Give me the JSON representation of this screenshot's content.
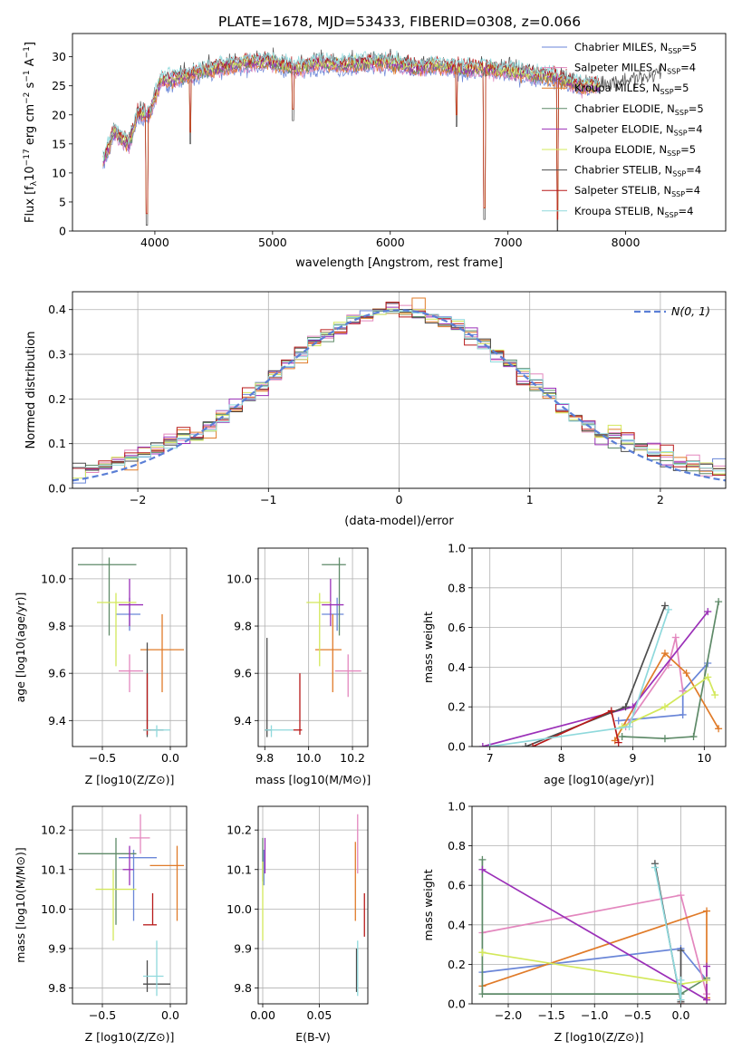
{
  "figure_title": "PLATE=1678, MJD=53433, FIBERID=0308, z=0.066",
  "models": [
    {
      "name": "Chabrier MILES, N",
      "sub": "SSP",
      "tail": "=5",
      "color": "#6a86d8"
    },
    {
      "name": "Salpeter MILES, N",
      "sub": "SSP",
      "tail": "=4",
      "color": "#e387be"
    },
    {
      "name": "Kroupa MILES, N",
      "sub": "SSP",
      "tail": "=5",
      "color": "#e07b29"
    },
    {
      "name": "Chabrier ELODIE, N",
      "sub": "SSP",
      "tail": "=5",
      "color": "#5e8a68"
    },
    {
      "name": "Salpeter ELODIE, N",
      "sub": "SSP",
      "tail": "=4",
      "color": "#9b30b8"
    },
    {
      "name": "Kroupa ELODIE, N",
      "sub": "SSP",
      "tail": "=5",
      "color": "#d3e85b"
    },
    {
      "name": "Chabrier STELIB, N",
      "sub": "SSP",
      "tail": "=4",
      "color": "#4d4d4d"
    },
    {
      "name": "Salpeter STELIB, N",
      "sub": "SSP",
      "tail": "=4",
      "color": "#b81a1a"
    },
    {
      "name": "Kroupa STELIB, N",
      "sub": "SSP",
      "tail": "=4",
      "color": "#8fd9dc"
    }
  ],
  "chart_data": [
    {
      "id": "spectrum",
      "type": "line",
      "xlabel": "wavelength [Angstrom, rest frame]",
      "ylabel_parts": [
        "Flux [f",
        "λ",
        "10",
        "−17",
        " erg cm",
        "−2",
        " s",
        "−1",
        " A",
        "−1",
        "]"
      ],
      "xlim": [
        3300,
        8850
      ],
      "ylim": [
        0,
        34
      ],
      "xticks": [
        4000,
        5000,
        6000,
        7000,
        8000
      ],
      "yticks": [
        0,
        5,
        10,
        15,
        20,
        25,
        30
      ],
      "legend_position": "top-right",
      "anchors": [
        [
          3560,
          12
        ],
        [
          3650,
          17
        ],
        [
          3780,
          15
        ],
        [
          3850,
          20
        ],
        [
          3950,
          20
        ],
        [
          4050,
          26
        ],
        [
          4150,
          26
        ],
        [
          4300,
          27
        ],
        [
          4500,
          28
        ],
        [
          4800,
          29
        ],
        [
          5000,
          29
        ],
        [
          5200,
          28
        ],
        [
          5400,
          29
        ],
        [
          5600,
          28.5
        ],
        [
          5800,
          29
        ],
        [
          6000,
          29
        ],
        [
          6200,
          28
        ],
        [
          6400,
          28.5
        ],
        [
          6600,
          28
        ],
        [
          6800,
          28
        ],
        [
          7000,
          27.5
        ],
        [
          7200,
          27
        ],
        [
          7400,
          26.5
        ],
        [
          7600,
          25
        ],
        [
          7800,
          25
        ],
        [
          8000,
          25.5
        ],
        [
          8200,
          26
        ],
        [
          8300,
          27
        ]
      ],
      "dips": [
        [
          3933,
          1
        ],
        [
          4300,
          15
        ],
        [
          5175,
          19
        ],
        [
          6563,
          18
        ],
        [
          6800,
          2
        ],
        [
          7420,
          0
        ]
      ]
    },
    {
      "id": "residuals",
      "type": "histogram",
      "xlabel": "(data-model)/error",
      "ylabel": "Normed distribution",
      "xlim": [
        -2.5,
        2.5
      ],
      "ylim": [
        0,
        0.44
      ],
      "xticks": [
        -2,
        -1,
        0,
        1,
        2
      ],
      "yticks": [
        0.0,
        0.1,
        0.2,
        0.3,
        0.4
      ],
      "reference_curve": "Normal(0,1)",
      "legend_label": "N(0, 1)",
      "bin_width": 0.1
    },
    {
      "id": "age_vs_Z",
      "type": "scatter",
      "xlabel": "Z [log10(Z/Z⊙)]",
      "ylabel": "age [log10(age/yr)]",
      "xlim": [
        -0.72,
        0.12
      ],
      "ylim": [
        9.29,
        10.13
      ],
      "xticks": [
        -0.5,
        0.0
      ],
      "yticks": [
        9.4,
        9.6,
        9.8,
        10.0
      ],
      "points": [
        {
          "m": 0,
          "x": -0.3,
          "xlo": -0.4,
          "xhi": -0.22,
          "y": 9.85,
          "ylo": 9.78,
          "yhi": 9.92
        },
        {
          "m": 1,
          "x": -0.3,
          "xlo": -0.38,
          "xhi": -0.2,
          "y": 9.61,
          "ylo": 9.52,
          "yhi": 9.68
        },
        {
          "m": 2,
          "x": -0.06,
          "xlo": -0.22,
          "xhi": 0.1,
          "y": 9.7,
          "ylo": 9.52,
          "yhi": 9.85
        },
        {
          "m": 3,
          "x": -0.45,
          "xlo": -0.68,
          "xhi": -0.25,
          "y": 10.06,
          "ylo": 9.76,
          "yhi": 10.09
        },
        {
          "m": 4,
          "x": -0.3,
          "xlo": -0.38,
          "xhi": -0.2,
          "y": 9.89,
          "ylo": 9.8,
          "yhi": 10.0
        },
        {
          "m": 5,
          "x": -0.4,
          "xlo": -0.54,
          "xhi": -0.25,
          "y": 9.9,
          "ylo": 9.63,
          "yhi": 9.94
        },
        {
          "m": 6,
          "x": -0.17,
          "xlo": -0.2,
          "xhi": -0.05,
          "y": 9.36,
          "ylo": 9.33,
          "yhi": 9.73
        },
        {
          "m": 7,
          "x": -0.17,
          "xlo": -0.2,
          "xhi": -0.14,
          "y": 9.36,
          "ylo": 9.34,
          "yhi": 9.6
        },
        {
          "m": 8,
          "x": -0.1,
          "xlo": -0.2,
          "xhi": 0.0,
          "y": 9.36,
          "ylo": 9.33,
          "yhi": 9.38
        }
      ]
    },
    {
      "id": "age_vs_mass",
      "type": "scatter",
      "xlabel": "mass [log10(M/M⊙)]",
      "ylabel": "",
      "xlim": [
        9.77,
        10.27
      ],
      "ylim": [
        9.29,
        10.13
      ],
      "xticks": [
        9.8,
        10.0,
        10.2
      ],
      "yticks": [
        9.4,
        9.6,
        9.8,
        10.0
      ],
      "points": [
        {
          "m": 0,
          "x": 10.13,
          "xlo": 10.06,
          "xhi": 10.16,
          "y": 9.85,
          "ylo": 9.78,
          "yhi": 9.92
        },
        {
          "m": 1,
          "x": 10.18,
          "xlo": 10.12,
          "xhi": 10.24,
          "y": 9.61,
          "ylo": 9.5,
          "yhi": 9.68
        },
        {
          "m": 2,
          "x": 10.11,
          "xlo": 10.03,
          "xhi": 10.15,
          "y": 9.7,
          "ylo": 9.52,
          "yhi": 9.85
        },
        {
          "m": 3,
          "x": 10.14,
          "xlo": 10.06,
          "xhi": 10.17,
          "y": 10.06,
          "ylo": 9.76,
          "yhi": 10.09
        },
        {
          "m": 4,
          "x": 10.1,
          "xlo": 10.06,
          "xhi": 10.16,
          "y": 9.89,
          "ylo": 9.8,
          "yhi": 10.0
        },
        {
          "m": 5,
          "x": 10.05,
          "xlo": 9.99,
          "xhi": 10.1,
          "y": 9.9,
          "ylo": 9.63,
          "yhi": 9.94
        },
        {
          "m": 6,
          "x": 9.81,
          "xlo": 9.8,
          "xhi": 9.83,
          "y": 9.36,
          "ylo": 9.33,
          "yhi": 9.75
        },
        {
          "m": 7,
          "x": 9.96,
          "xlo": 9.93,
          "xhi": 9.97,
          "y": 9.36,
          "ylo": 9.34,
          "yhi": 9.6
        },
        {
          "m": 8,
          "x": 9.83,
          "xlo": 9.8,
          "xhi": 9.93,
          "y": 9.36,
          "ylo": 9.33,
          "yhi": 9.38
        }
      ]
    },
    {
      "id": "weight_vs_age",
      "type": "line",
      "xlabel": "age [log10(age/yr)]",
      "ylabel": "mass weight",
      "xlim": [
        6.75,
        10.3
      ],
      "ylim": [
        0,
        1.0
      ],
      "xticks": [
        7,
        8,
        9,
        10
      ],
      "yticks": [
        0.0,
        0.2,
        0.4,
        0.6,
        0.8,
        1.0
      ],
      "series": [
        {
          "m": 0,
          "x": [
            8.8,
            9.7,
            9.7,
            10.05
          ],
          "y": [
            0.13,
            0.16,
            0.28,
            0.42
          ]
        },
        {
          "m": 1,
          "x": [
            8.9,
            9.5,
            9.6,
            9.7
          ],
          "y": [
            0.1,
            0.41,
            0.55,
            0.28
          ]
        },
        {
          "m": 2,
          "x": [
            8.75,
            9.45,
            9.75,
            10.2
          ],
          "y": [
            0.03,
            0.47,
            0.37,
            0.09
          ]
        },
        {
          "m": 3,
          "x": [
            8.85,
            9.45,
            9.85,
            10.2
          ],
          "y": [
            0.05,
            0.04,
            0.05,
            0.73
          ]
        },
        {
          "m": 4,
          "x": [
            6.9,
            9.0,
            10.05
          ],
          "y": [
            0.0,
            0.2,
            0.68
          ]
        },
        {
          "m": 5,
          "x": [
            8.85,
            9.45,
            10.05,
            10.15
          ],
          "y": [
            0.1,
            0.2,
            0.35,
            0.26
          ]
        },
        {
          "m": 6,
          "x": [
            7.5,
            8.9,
            9.45
          ],
          "y": [
            0.0,
            0.2,
            0.71
          ]
        },
        {
          "m": 7,
          "x": [
            7.6,
            8.7,
            8.8
          ],
          "y": [
            0.0,
            0.18,
            0.02
          ]
        },
        {
          "m": 8,
          "x": [
            7.0,
            8.95,
            9.5
          ],
          "y": [
            0.0,
            0.1,
            0.69
          ]
        }
      ]
    },
    {
      "id": "mass_vs_Z",
      "type": "scatter",
      "xlabel": "Z [log10(Z/Z⊙)]",
      "ylabel": "mass [log10(M/M⊙)]",
      "xlim": [
        -0.72,
        0.12
      ],
      "ylim": [
        9.76,
        10.26
      ],
      "xticks": [
        -0.5,
        0.0
      ],
      "yticks": [
        9.8,
        9.9,
        10.0,
        10.1,
        10.2
      ],
      "points": [
        {
          "m": 0,
          "x": -0.27,
          "xlo": -0.38,
          "xhi": -0.1,
          "y": 10.13,
          "ylo": 9.97,
          "yhi": 10.15
        },
        {
          "m": 1,
          "x": -0.22,
          "xlo": -0.3,
          "xhi": -0.15,
          "y": 10.18,
          "ylo": 10.14,
          "yhi": 10.24
        },
        {
          "m": 2,
          "x": 0.05,
          "xlo": -0.15,
          "xhi": 0.1,
          "y": 10.11,
          "ylo": 9.97,
          "yhi": 10.16
        },
        {
          "m": 3,
          "x": -0.4,
          "xlo": -0.68,
          "xhi": -0.25,
          "y": 10.14,
          "ylo": 9.96,
          "yhi": 10.18
        },
        {
          "m": 4,
          "x": -0.3,
          "xlo": -0.35,
          "xhi": -0.27,
          "y": 10.1,
          "ylo": 10.06,
          "yhi": 10.16
        },
        {
          "m": 5,
          "x": -0.42,
          "xlo": -0.55,
          "xhi": -0.25,
          "y": 10.05,
          "ylo": 9.92,
          "yhi": 10.1
        },
        {
          "m": 6,
          "x": -0.17,
          "xlo": -0.2,
          "xhi": -0.0,
          "y": 9.81,
          "ylo": 9.79,
          "yhi": 9.87
        },
        {
          "m": 7,
          "x": -0.13,
          "xlo": -0.2,
          "xhi": -0.1,
          "y": 9.96,
          "ylo": 9.96,
          "yhi": 10.04
        },
        {
          "m": 8,
          "x": -0.1,
          "xlo": -0.2,
          "xhi": -0.05,
          "y": 9.83,
          "ylo": 9.78,
          "yhi": 9.92
        }
      ]
    },
    {
      "id": "mass_vs_ebv",
      "type": "scatter",
      "xlabel": "E(B-V)",
      "ylabel": "",
      "xlim": [
        -0.004,
        0.093
      ],
      "ylim": [
        9.76,
        10.26
      ],
      "xticks": [
        0.0,
        0.05
      ],
      "yticks": [
        9.8,
        9.9,
        10.0,
        10.1,
        10.2
      ],
      "points": [
        {
          "m": 0,
          "x": 0.001,
          "y": 10.13,
          "ylo": 10.06,
          "yhi": 10.15
        },
        {
          "m": 1,
          "x": 0.084,
          "y": 10.18,
          "ylo": 10.09,
          "yhi": 10.24
        },
        {
          "m": 2,
          "x": 0.082,
          "y": 10.11,
          "ylo": 9.97,
          "yhi": 10.17
        },
        {
          "m": 3,
          "x": 0.0,
          "y": 10.14,
          "ylo": 10.07,
          "yhi": 10.18
        },
        {
          "m": 4,
          "x": 0.002,
          "y": 10.1,
          "ylo": 10.09,
          "yhi": 10.18
        },
        {
          "m": 5,
          "x": 0.0,
          "y": 10.05,
          "ylo": 9.92,
          "yhi": 10.12
        },
        {
          "m": 6,
          "x": 0.083,
          "y": 9.81,
          "ylo": 9.79,
          "yhi": 9.9
        },
        {
          "m": 7,
          "x": 0.09,
          "y": 9.96,
          "ylo": 9.93,
          "yhi": 10.04
        },
        {
          "m": 8,
          "x": 0.084,
          "y": 9.83,
          "ylo": 9.78,
          "yhi": 9.92
        }
      ]
    },
    {
      "id": "weight_vs_Z",
      "type": "line",
      "xlabel": "Z [log10(Z/Z⊙)]",
      "ylabel": "mass weight",
      "xlim": [
        -2.42,
        0.52
      ],
      "ylim": [
        0,
        1.0
      ],
      "xticks": [
        -2.0,
        -1.5,
        -1.0,
        -0.5,
        0.0
      ],
      "yticks": [
        0.0,
        0.2,
        0.4,
        0.6,
        0.8,
        1.0
      ],
      "series": [
        {
          "m": 0,
          "x": [
            -2.3,
            0.0,
            0.3
          ],
          "y": [
            0.16,
            0.28,
            0.12
          ]
        },
        {
          "m": 1,
          "x": [
            -2.3,
            0.0,
            0.3
          ],
          "y": [
            0.36,
            0.55,
            0.05
          ]
        },
        {
          "m": 2,
          "x": [
            -2.3,
            0.3,
            0.3,
            0.3
          ],
          "y": [
            0.09,
            0.47,
            0.03,
            0.02
          ]
        },
        {
          "m": 3,
          "x": [
            -2.3,
            -2.3,
            0.0,
            0.3
          ],
          "y": [
            0.73,
            0.05,
            0.05,
            0.13
          ]
        },
        {
          "m": 4,
          "x": [
            -2.3,
            0.3,
            0.3
          ],
          "y": [
            0.68,
            0.02,
            0.19
          ]
        },
        {
          "m": 5,
          "x": [
            -2.3,
            -2.3,
            0.0,
            0.3
          ],
          "y": [
            0.26,
            0.26,
            0.1,
            0.12
          ]
        },
        {
          "m": 6,
          "x": [
            -0.3,
            0.0,
            0.0
          ],
          "y": [
            0.71,
            0.01,
            0.27
          ]
        },
        {
          "m": 7,
          "x": [
            0.0,
            0.0
          ],
          "y": [
            0.0,
            0.02
          ]
        },
        {
          "m": 8,
          "x": [
            -0.3,
            0.0,
            0.0
          ],
          "y": [
            0.69,
            0.02,
            0.12
          ]
        }
      ]
    }
  ]
}
